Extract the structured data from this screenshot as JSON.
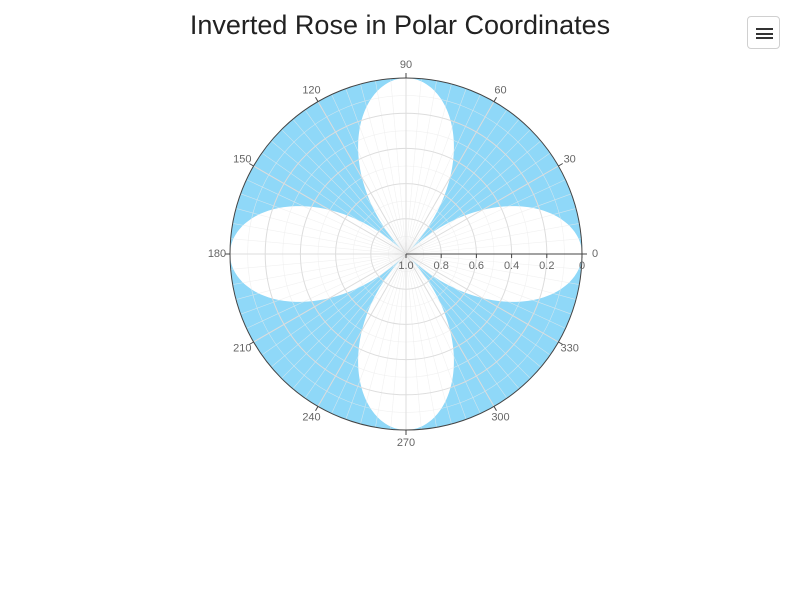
{
  "title": "Inverted Rose in Polar Coordinates",
  "menu": {
    "icon": "hamburger-menu-icon"
  },
  "chart_data": {
    "type": "polar-area",
    "series": [
      {
        "function": "r = 1 - |cos(2θ)|",
        "fill_color": "#8fd8f8",
        "fill_mode": "fill-to-outer-edge"
      }
    ],
    "angular_axis": {
      "ticks": [
        0,
        30,
        60,
        90,
        120,
        150,
        180,
        210,
        240,
        270,
        300,
        330
      ],
      "direction": "counterclockwise",
      "rotation": 0
    },
    "radial_axis": {
      "range": [
        1.0,
        0
      ],
      "ticks": [
        1.0,
        0.8,
        0.6,
        0.4,
        0.2,
        0
      ],
      "tick_labels": [
        "1.0",
        "0.8",
        "0.6",
        "0.4",
        "0.2",
        "0"
      ]
    },
    "grid": true,
    "colors": {
      "grid": "#dddddd",
      "axis_line": "#444444",
      "tick_text": "#666666"
    }
  }
}
